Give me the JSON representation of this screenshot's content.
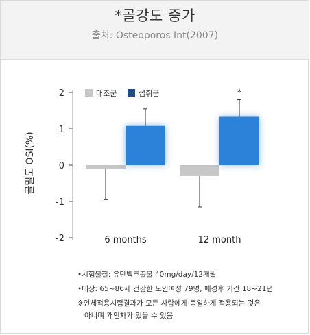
{
  "header": {
    "title": "*골강도 증가",
    "subtitle": "출처: Osteoporos Int(2007)"
  },
  "colors": {
    "control": "#c7c7c7",
    "intake": "#2b82d8",
    "intake_legend": "#1f4f86",
    "axis": "#444444"
  },
  "chart_data": {
    "type": "bar",
    "categories": [
      "6 months",
      "12 month"
    ],
    "ylabel": "골밀도 OSI(%)",
    "ylim": [
      -2,
      2
    ],
    "yticks": [
      "2",
      "1",
      "0",
      "-1",
      "-2"
    ],
    "legend_position": "top-left",
    "series": [
      {
        "name": "대조군",
        "values": [
          -0.1,
          -0.3
        ],
        "error_low": [
          -0.95,
          -1.15
        ]
      },
      {
        "name": "섭취군",
        "values": [
          1.08,
          1.33
        ],
        "error_high": [
          1.55,
          1.8
        ]
      }
    ],
    "annotations": [
      {
        "category": "12 month",
        "series": "섭취군",
        "text": "*"
      }
    ]
  },
  "notes": {
    "line1": "•시험물질: 유단백추출물 40mg/day/12개월",
    "line2": "•대상: 65~86세 건강한 노인여성 79명, 폐경후 기간 18~21년",
    "line3": "※인체적용시험결과가 모든 사람에게 동일하게 적용되는 것은",
    "line3b": "아니며 개인차가 있을 수 있음"
  }
}
